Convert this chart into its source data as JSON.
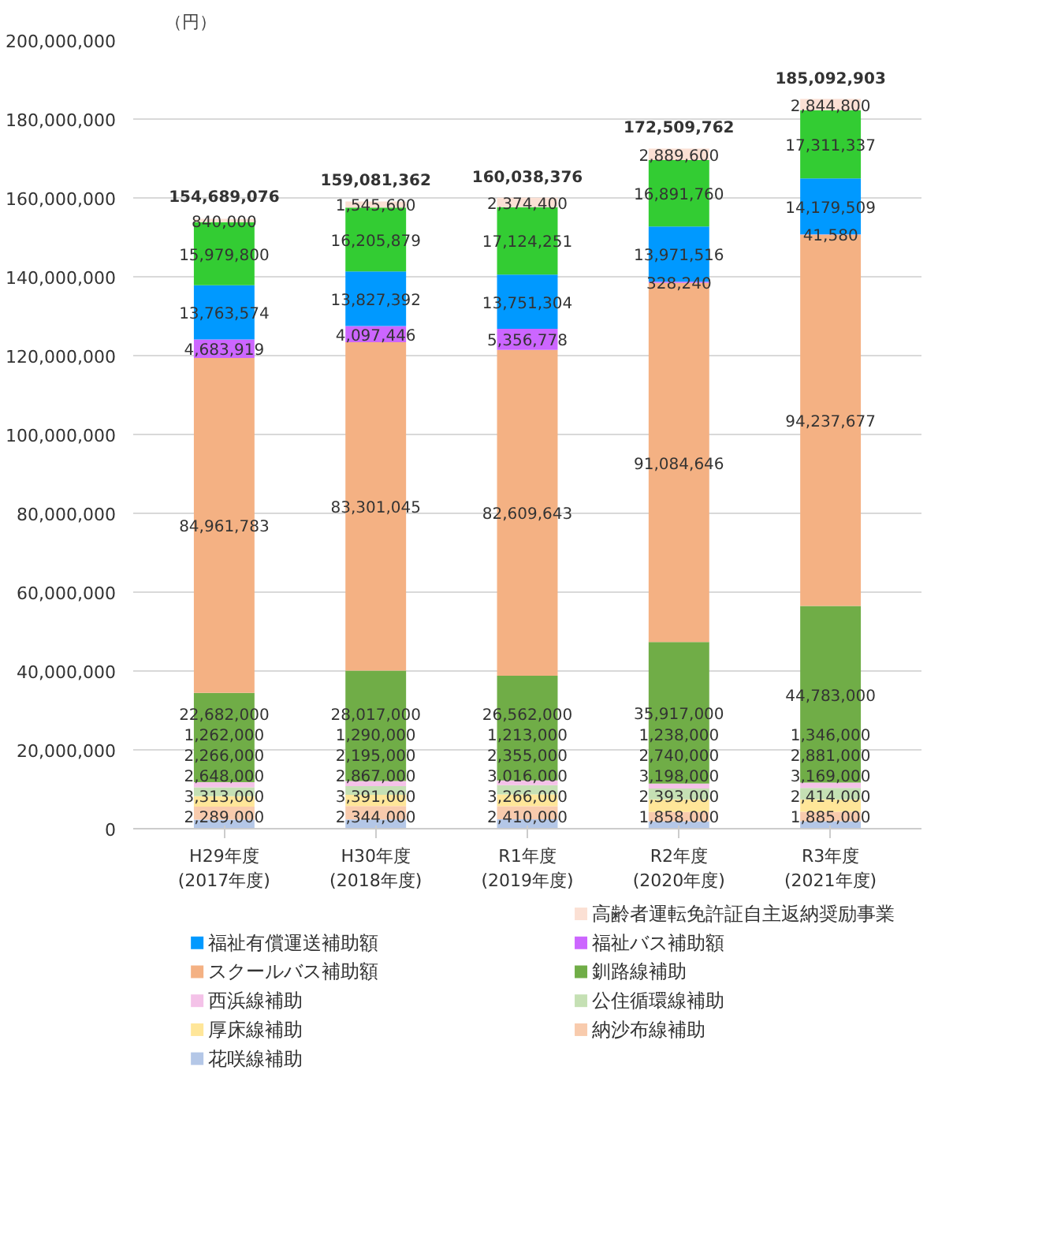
{
  "chart_data": {
    "type": "bar",
    "stacked": true,
    "ylabel": "（円）",
    "categories": [
      "H29年度\n(2017年度)",
      "H30年度\n(2018年度)",
      "R1年度\n(2019年度)",
      "R2年度\n(2020年度)",
      "R3年度\n(2021年度)"
    ],
    "series": [
      {
        "name": "花咲線補助",
        "color": "#b4c7e7",
        "values": [
          2289000,
          2344000,
          2410000,
          1858000,
          1885000
        ],
        "value_labels": [
          "2,289,000",
          "2,344,000",
          "2,410,000",
          "1,858,000",
          "1,885,000"
        ]
      },
      {
        "name": "納沙布線補助",
        "color": "#f8cbad",
        "values": [
          3313000,
          3391000,
          3266000,
          2393000,
          2414000
        ],
        "value_labels": [
          "3,313,000",
          "3,391,000",
          "3,266,000",
          "2,393,000",
          "2,414,000"
        ]
      },
      {
        "name": "厚床線補助",
        "color": "#ffe699",
        "values": [
          2648000,
          2867000,
          3016000,
          3198000,
          3169000
        ],
        "value_labels": [
          "2,648,000",
          "2,867,000",
          "3,016,000",
          "3,198,000",
          "3,169,000"
        ]
      },
      {
        "name": "公住循環線補助",
        "color": "#c5e0b4",
        "values": [
          2266000,
          2195000,
          2355000,
          2740000,
          2881000
        ],
        "value_labels": [
          "2,266,000",
          "2,195,000",
          "2,355,000",
          "2,740,000",
          "2,881,000"
        ]
      },
      {
        "name": "西浜線補助",
        "color": "#f4c2e8",
        "values": [
          1262000,
          1290000,
          1213000,
          1238000,
          1346000
        ],
        "value_labels": [
          "1,262,000",
          "1,290,000",
          "1,213,000",
          "1,238,000",
          "1,346,000"
        ]
      },
      {
        "name": "釧路線補助",
        "color": "#70ad47",
        "values": [
          22682000,
          28017000,
          26562000,
          35917000,
          44783000
        ],
        "value_labels": [
          "22,682,000",
          "28,017,000",
          "26,562,000",
          "35,917,000",
          "44,783,000"
        ]
      },
      {
        "name": "スクールバス補助額",
        "color": "#f4b183",
        "values": [
          84961783,
          83301045,
          82609643,
          91084646,
          94237677
        ],
        "value_labels": [
          "84,961,783",
          "83,301,045",
          "82,609,643",
          "91,084,646",
          "94,237,677"
        ]
      },
      {
        "name": "福祉バス補助額",
        "color": "#cc66ff",
        "values": [
          4683919,
          4097446,
          5356778,
          328240,
          41580
        ],
        "value_labels": [
          "4,683,919",
          "4,097,446",
          "5,356,778",
          "328,240",
          "41,580"
        ]
      },
      {
        "name": "福祉有償運送補助額",
        "color": "#0099ff",
        "values": [
          13763574,
          13827392,
          13751304,
          13971516,
          14179509
        ],
        "value_labels": [
          "13,763,574",
          "13,827,392",
          "13,751,304",
          "13,971,516",
          "14,179,509"
        ]
      },
      {
        "color": "#33cc33",
        "values": [
          15979800,
          16205879,
          17124251,
          16891760,
          17311337
        ],
        "value_labels": [
          "15,979,800",
          "16,205,879",
          "17,124,251",
          "16,891,760",
          "17,311,337"
        ]
      },
      {
        "name": "高齢者運転免許証自主返納奨励事業",
        "color": "#fbe0d4",
        "values": [
          840000,
          1545600,
          2374400,
          2889600,
          2844800
        ],
        "value_labels": [
          "840,000",
          "1,545,600",
          "2,374,400",
          "2,889,600",
          "2,844,800"
        ]
      }
    ],
    "totals": [
      "154,689,076",
      "159,081,362",
      "160,038,376",
      "172,509,762",
      "185,092,903"
    ],
    "ylim": [
      0,
      200000000
    ],
    "yticks": [
      {
        "value": 0,
        "label": "0"
      },
      {
        "value": 20000000,
        "label": "20,000,000"
      },
      {
        "value": 40000000,
        "label": "40,000,000"
      },
      {
        "value": 60000000,
        "label": "60,000,000"
      },
      {
        "value": 80000000,
        "label": "80,000,000"
      },
      {
        "value": 100000000,
        "label": "100,000,000"
      },
      {
        "value": 120000000,
        "label": "120,000,000"
      },
      {
        "value": 140000000,
        "label": "140,000,000"
      },
      {
        "value": 160000000,
        "label": "160,000,000"
      },
      {
        "value": 180000000,
        "label": "180,000,000"
      },
      {
        "value": 200000000,
        "label": "200,000,000"
      }
    ],
    "grid": "y",
    "legend": "bottom"
  }
}
